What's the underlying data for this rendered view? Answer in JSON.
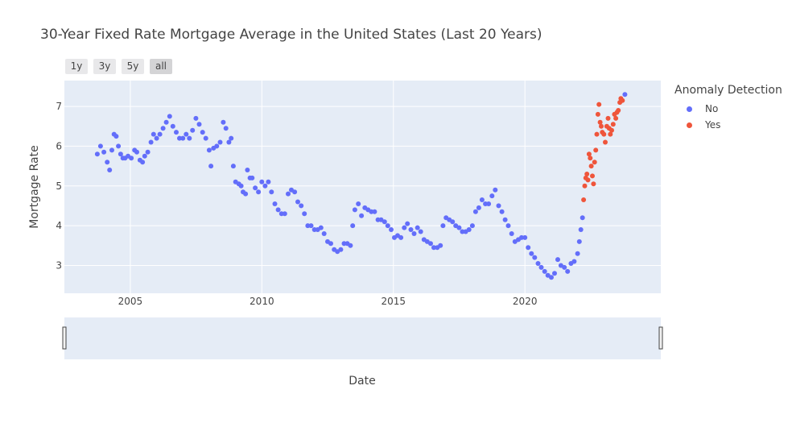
{
  "chart_data": {
    "type": "scatter",
    "title": "30-Year Fixed Rate Mortgage Average in the United States (Last 20 Years)",
    "xlabel": "Date",
    "ylabel": "Mortgage Rate",
    "x_ticks": [
      "2005",
      "2010",
      "2015",
      "2020"
    ],
    "y_ticks": [
      3,
      4,
      5,
      6,
      7
    ],
    "xlim": [
      "2002-07-01",
      "2025-03-01"
    ],
    "ylim": [
      2.3,
      7.65
    ],
    "grid": true,
    "legend_title": "Anomaly Detection",
    "legend_placement": "right",
    "range_selector": [
      "1y",
      "3y",
      "5y",
      "all"
    ],
    "range_selector_active": "all",
    "rangeslider": true,
    "colors": {
      "No": "#636efa",
      "Yes": "#ef553b",
      "plot_bg": "#e5ecf6"
    },
    "series": [
      {
        "name": "No",
        "points": [
          [
            "2003-10-01",
            5.8
          ],
          [
            "2003-11-15",
            6.0
          ],
          [
            "2004-01-01",
            5.85
          ],
          [
            "2004-02-15",
            5.6
          ],
          [
            "2004-03-20",
            5.4
          ],
          [
            "2004-04-20",
            5.9
          ],
          [
            "2004-05-20",
            6.3
          ],
          [
            "2004-06-20",
            6.25
          ],
          [
            "2004-07-20",
            6.0
          ],
          [
            "2004-08-20",
            5.8
          ],
          [
            "2004-09-20",
            5.7
          ],
          [
            "2004-10-20",
            5.7
          ],
          [
            "2004-12-01",
            5.75
          ],
          [
            "2005-01-15",
            5.7
          ],
          [
            "2005-03-01",
            5.9
          ],
          [
            "2005-04-01",
            5.85
          ],
          [
            "2005-05-15",
            5.65
          ],
          [
            "2005-06-20",
            5.6
          ],
          [
            "2005-07-20",
            5.75
          ],
          [
            "2005-09-01",
            5.85
          ],
          [
            "2005-10-15",
            6.1
          ],
          [
            "2005-11-20",
            6.3
          ],
          [
            "2006-01-01",
            6.2
          ],
          [
            "2006-02-15",
            6.3
          ],
          [
            "2006-04-01",
            6.45
          ],
          [
            "2006-05-15",
            6.6
          ],
          [
            "2006-07-01",
            6.75
          ],
          [
            "2006-08-15",
            6.5
          ],
          [
            "2006-10-01",
            6.35
          ],
          [
            "2006-11-15",
            6.2
          ],
          [
            "2007-01-01",
            6.2
          ],
          [
            "2007-02-15",
            6.3
          ],
          [
            "2007-04-01",
            6.2
          ],
          [
            "2007-05-15",
            6.4
          ],
          [
            "2007-07-01",
            6.7
          ],
          [
            "2007-08-15",
            6.55
          ],
          [
            "2007-10-01",
            6.35
          ],
          [
            "2007-11-15",
            6.2
          ],
          [
            "2008-01-01",
            5.9
          ],
          [
            "2008-01-25",
            5.5
          ],
          [
            "2008-03-01",
            5.95
          ],
          [
            "2008-04-15",
            6.0
          ],
          [
            "2008-06-01",
            6.1
          ],
          [
            "2008-07-15",
            6.6
          ],
          [
            "2008-08-20",
            6.45
          ],
          [
            "2008-10-01",
            6.1
          ],
          [
            "2008-11-01",
            6.2
          ],
          [
            "2008-12-01",
            5.5
          ],
          [
            "2009-01-01",
            5.1
          ],
          [
            "2009-02-15",
            5.05
          ],
          [
            "2009-03-20",
            5.0
          ],
          [
            "2009-04-15",
            4.85
          ],
          [
            "2009-05-20",
            4.8
          ],
          [
            "2009-06-15",
            5.4
          ],
          [
            "2009-07-20",
            5.2
          ],
          [
            "2009-08-20",
            5.2
          ],
          [
            "2009-10-01",
            4.95
          ],
          [
            "2009-11-15",
            4.85
          ],
          [
            "2010-01-01",
            5.1
          ],
          [
            "2010-02-15",
            5.0
          ],
          [
            "2010-04-01",
            5.1
          ],
          [
            "2010-05-15",
            4.85
          ],
          [
            "2010-07-01",
            4.55
          ],
          [
            "2010-08-15",
            4.4
          ],
          [
            "2010-10-01",
            4.3
          ],
          [
            "2010-11-15",
            4.3
          ],
          [
            "2011-01-01",
            4.8
          ],
          [
            "2011-02-15",
            4.9
          ],
          [
            "2011-04-01",
            4.85
          ],
          [
            "2011-05-15",
            4.6
          ],
          [
            "2011-07-01",
            4.5
          ],
          [
            "2011-08-15",
            4.3
          ],
          [
            "2011-10-01",
            4.0
          ],
          [
            "2011-11-15",
            4.0
          ],
          [
            "2012-01-01",
            3.9
          ],
          [
            "2012-02-15",
            3.9
          ],
          [
            "2012-04-01",
            3.95
          ],
          [
            "2012-05-15",
            3.8
          ],
          [
            "2012-07-01",
            3.6
          ],
          [
            "2012-08-15",
            3.55
          ],
          [
            "2012-10-01",
            3.4
          ],
          [
            "2012-11-15",
            3.35
          ],
          [
            "2013-01-01",
            3.4
          ],
          [
            "2013-02-15",
            3.55
          ],
          [
            "2013-04-01",
            3.55
          ],
          [
            "2013-05-15",
            3.5
          ],
          [
            "2013-06-15",
            4.0
          ],
          [
            "2013-07-15",
            4.4
          ],
          [
            "2013-09-01",
            4.55
          ],
          [
            "2013-10-15",
            4.25
          ],
          [
            "2013-12-01",
            4.45
          ],
          [
            "2014-01-15",
            4.4
          ],
          [
            "2014-03-01",
            4.35
          ],
          [
            "2014-04-15",
            4.35
          ],
          [
            "2014-06-01",
            4.15
          ],
          [
            "2014-07-15",
            4.15
          ],
          [
            "2014-09-01",
            4.1
          ],
          [
            "2014-10-15",
            4.0
          ],
          [
            "2014-12-01",
            3.9
          ],
          [
            "2015-01-15",
            3.7
          ],
          [
            "2015-03-01",
            3.75
          ],
          [
            "2015-04-15",
            3.7
          ],
          [
            "2015-06-01",
            3.95
          ],
          [
            "2015-07-15",
            4.05
          ],
          [
            "2015-09-01",
            3.9
          ],
          [
            "2015-10-15",
            3.8
          ],
          [
            "2015-12-01",
            3.95
          ],
          [
            "2016-01-15",
            3.85
          ],
          [
            "2016-03-01",
            3.65
          ],
          [
            "2016-04-15",
            3.6
          ],
          [
            "2016-06-01",
            3.55
          ],
          [
            "2016-07-15",
            3.45
          ],
          [
            "2016-09-01",
            3.45
          ],
          [
            "2016-10-15",
            3.5
          ],
          [
            "2016-11-20",
            4.0
          ],
          [
            "2017-01-01",
            4.2
          ],
          [
            "2017-02-15",
            4.15
          ],
          [
            "2017-04-01",
            4.1
          ],
          [
            "2017-05-15",
            4.0
          ],
          [
            "2017-07-01",
            3.95
          ],
          [
            "2017-08-15",
            3.85
          ],
          [
            "2017-10-01",
            3.85
          ],
          [
            "2017-11-15",
            3.9
          ],
          [
            "2018-01-01",
            4.0
          ],
          [
            "2018-02-15",
            4.35
          ],
          [
            "2018-04-01",
            4.45
          ],
          [
            "2018-05-15",
            4.65
          ],
          [
            "2018-07-01",
            4.55
          ],
          [
            "2018-08-15",
            4.55
          ],
          [
            "2018-10-01",
            4.75
          ],
          [
            "2018-11-15",
            4.9
          ],
          [
            "2019-01-01",
            4.5
          ],
          [
            "2019-02-15",
            4.35
          ],
          [
            "2019-04-01",
            4.15
          ],
          [
            "2019-05-15",
            4.0
          ],
          [
            "2019-07-01",
            3.8
          ],
          [
            "2019-08-15",
            3.6
          ],
          [
            "2019-10-01",
            3.65
          ],
          [
            "2019-11-15",
            3.7
          ],
          [
            "2020-01-01",
            3.7
          ],
          [
            "2020-02-15",
            3.45
          ],
          [
            "2020-04-01",
            3.3
          ],
          [
            "2020-05-15",
            3.2
          ],
          [
            "2020-07-01",
            3.05
          ],
          [
            "2020-08-15",
            2.95
          ],
          [
            "2020-10-01",
            2.85
          ],
          [
            "2020-11-15",
            2.75
          ],
          [
            "2021-01-01",
            2.7
          ],
          [
            "2021-02-15",
            2.8
          ],
          [
            "2021-04-01",
            3.15
          ],
          [
            "2021-05-15",
            3.0
          ],
          [
            "2021-07-01",
            2.95
          ],
          [
            "2021-08-15",
            2.85
          ],
          [
            "2021-10-01",
            3.05
          ],
          [
            "2021-11-15",
            3.1
          ],
          [
            "2022-01-01",
            3.3
          ],
          [
            "2022-01-25",
            3.6
          ],
          [
            "2022-02-15",
            3.9
          ],
          [
            "2022-03-10",
            4.2
          ],
          [
            "2023-10-20",
            7.3
          ]
        ]
      },
      {
        "name": "Yes",
        "points": [
          [
            "2022-03-25",
            4.65
          ],
          [
            "2022-04-10",
            5.0
          ],
          [
            "2022-04-25",
            5.2
          ],
          [
            "2022-05-10",
            5.3
          ],
          [
            "2022-05-25",
            5.15
          ],
          [
            "2022-06-10",
            5.8
          ],
          [
            "2022-06-25",
            5.7
          ],
          [
            "2022-07-10",
            5.5
          ],
          [
            "2022-07-25",
            5.25
          ],
          [
            "2022-08-10",
            5.05
          ],
          [
            "2022-08-25",
            5.6
          ],
          [
            "2022-09-10",
            5.9
          ],
          [
            "2022-09-25",
            6.3
          ],
          [
            "2022-10-10",
            6.8
          ],
          [
            "2022-10-25",
            7.05
          ],
          [
            "2022-11-10",
            6.6
          ],
          [
            "2022-11-25",
            6.5
          ],
          [
            "2022-12-10",
            6.35
          ],
          [
            "2023-01-01",
            6.3
          ],
          [
            "2023-01-20",
            6.1
          ],
          [
            "2023-02-10",
            6.5
          ],
          [
            "2023-02-28",
            6.7
          ],
          [
            "2023-03-15",
            6.45
          ],
          [
            "2023-04-01",
            6.3
          ],
          [
            "2023-04-20",
            6.4
          ],
          [
            "2023-05-10",
            6.55
          ],
          [
            "2023-05-28",
            6.8
          ],
          [
            "2023-06-15",
            6.7
          ],
          [
            "2023-07-01",
            6.85
          ],
          [
            "2023-07-20",
            6.9
          ],
          [
            "2023-08-10",
            7.1
          ],
          [
            "2023-08-25",
            7.2
          ],
          [
            "2023-09-15",
            7.15
          ]
        ]
      }
    ]
  }
}
